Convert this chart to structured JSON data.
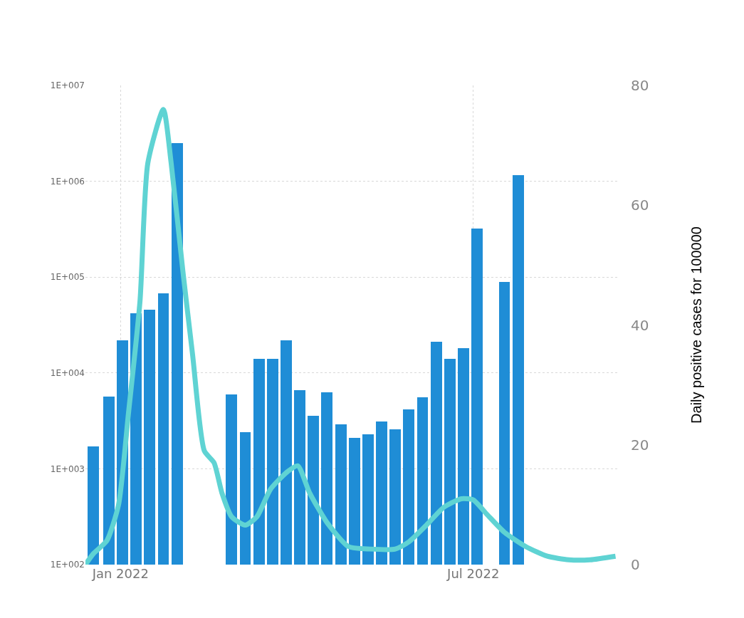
{
  "chart_data": {
    "type": "bar",
    "y2label": "Daily positive cases for 100000",
    "log": "y",
    "grid": true,
    "marker": "none",
    "xlim": [
      "2021-12-14",
      "2022-09-14"
    ],
    "xticks": [
      {
        "value": "2022-01-01",
        "label": "Jan 2022"
      },
      {
        "value": "2022-07-01",
        "label": "Jul 2022"
      }
    ],
    "ylim": [
      100,
      10000000
    ],
    "yticks": [
      {
        "value": 100,
        "label": "1E+002"
      },
      {
        "value": 1000,
        "label": "1E+003"
      },
      {
        "value": 10000,
        "label": "1E+004"
      },
      {
        "value": 100000,
        "label": "1E+005"
      },
      {
        "value": 1000000,
        "label": "1E+006"
      },
      {
        "value": 10000000,
        "label": "1E+007"
      }
    ],
    "y2lim": [
      0,
      80
    ],
    "y2ticks": [
      0,
      20,
      40,
      60,
      80
    ],
    "series": [
      {
        "color": "#1f8dd6",
        "x": [
          "2021-12-18",
          "2021-12-26",
          "2022-01-02",
          "2022-01-09",
          "2022-01-16",
          "2022-01-23",
          "2022-01-30",
          "2022-02-27",
          "2022-03-06",
          "2022-03-13",
          "2022-03-20",
          "2022-03-27",
          "2022-04-03",
          "2022-04-10",
          "2022-04-17",
          "2022-04-24",
          "2022-05-01",
          "2022-05-08",
          "2022-05-15",
          "2022-05-22",
          "2022-05-29",
          "2022-06-05",
          "2022-06-12",
          "2022-06-19",
          "2022-06-26",
          "2022-07-03",
          "2022-07-17",
          "2022-07-24"
        ],
        "values": [
          1700,
          5700,
          22000,
          42000,
          46000,
          68000,
          2500000,
          6000,
          2400,
          14000,
          14000,
          22000,
          6600,
          3600,
          6300,
          2900,
          2100,
          2300,
          3100,
          2600,
          4200,
          5600,
          21000,
          14000,
          18000,
          320000,
          89000,
          1150000
        ]
      },
      {
        "type": "line",
        "axis": "y2",
        "color": "#5fd3d3",
        "line_style": "solid",
        "x": [
          "2021-12-14",
          "2021-12-18",
          "2021-12-25",
          "2021-12-31",
          "2022-01-05",
          "2022-01-11",
          "2022-01-15",
          "2022-01-23",
          "2022-01-27",
          "2022-02-02",
          "2022-02-07",
          "2022-02-13",
          "2022-02-18",
          "2022-02-22",
          "2022-02-27",
          "2022-03-06",
          "2022-03-12",
          "2022-03-19",
          "2022-03-28",
          "2022-04-02",
          "2022-04-08",
          "2022-04-17",
          "2022-04-28",
          "2022-05-09",
          "2022-05-22",
          "2022-05-29",
          "2022-06-07",
          "2022-06-16",
          "2022-06-25",
          "2022-07-01",
          "2022-07-08",
          "2022-07-17",
          "2022-07-28",
          "2022-08-08",
          "2022-08-19",
          "2022-08-30",
          "2022-09-12"
        ],
        "values": [
          0,
          1.8,
          4,
          10,
          25,
          44,
          67,
          76,
          67,
          49,
          35,
          19,
          17,
          12,
          8,
          6.6,
          8,
          12.6,
          15.6,
          16.5,
          12,
          7,
          3,
          2.6,
          2.6,
          3.8,
          6.6,
          9.6,
          11,
          10.8,
          8.4,
          5.4,
          3,
          1.4,
          0.8,
          0.8,
          1.4
        ]
      }
    ]
  }
}
